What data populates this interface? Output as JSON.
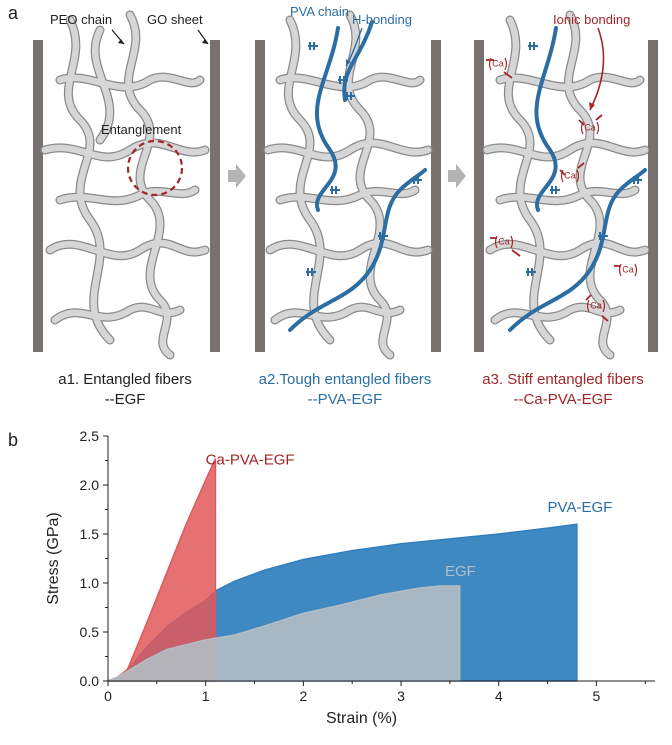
{
  "panel_a": {
    "letter": "a",
    "labels": {
      "peo_chain": "PEO chain",
      "go_sheet": "GO sheet",
      "entanglement": "Entanglement",
      "pva_chain": "PVA chain",
      "h_bonding": "H-bonding",
      "ionic_bonding": "Ionic bonding",
      "ca_ion": "Ca"
    },
    "captions": [
      {
        "line1": "a1. Entangled fibers",
        "line2": "--EGF",
        "color": "#1f1f1f"
      },
      {
        "line1": "a2.Tough entangled fibers",
        "line2": "--PVA-EGF",
        "color": "#2c6ea3"
      },
      {
        "line1": "a3. Stiff entangled fibers",
        "line2": "--Ca-PVA-EGF",
        "color": "#a3262a"
      }
    ],
    "colors": {
      "sheet": "#77716f",
      "peo": "#c9c9c9",
      "pva": "#2c6ea3",
      "ca": "#a3262a"
    }
  },
  "panel_b": {
    "letter": "b",
    "chart_data": {
      "type": "area",
      "xlabel": "Strain (%)",
      "ylabel": "Stress (GPa)",
      "xlim": [
        0,
        5.6
      ],
      "ylim": [
        0,
        2.5
      ],
      "x_ticks": [
        "0",
        "1",
        "2",
        "3",
        "4",
        "5"
      ],
      "y_ticks": [
        "0.0",
        "0.5",
        "1.0",
        "1.5",
        "2.0",
        "2.5"
      ],
      "grid": false,
      "series": [
        {
          "name": "PVA-EGF",
          "color": "#2f7fbe",
          "x": [
            0,
            0.1,
            0.2,
            0.4,
            0.6,
            0.8,
            1.0,
            1.1,
            1.3,
            1.6,
            2.0,
            2.5,
            3.0,
            3.5,
            4.0,
            4.5,
            4.8
          ],
          "y": [
            0,
            0.04,
            0.11,
            0.35,
            0.55,
            0.7,
            0.82,
            0.92,
            1.02,
            1.13,
            1.24,
            1.33,
            1.4,
            1.45,
            1.5,
            1.56,
            1.6
          ]
        },
        {
          "name": "Ca-PVA-EGF",
          "color": "#e0585a",
          "x": [
            0,
            0.1,
            0.2,
            0.4,
            0.6,
            0.8,
            1.0,
            1.1
          ],
          "y": [
            0,
            0.04,
            0.12,
            0.6,
            1.1,
            1.6,
            2.05,
            2.27
          ]
        },
        {
          "name": "EGF",
          "color": "#b3bdc3",
          "x": [
            0,
            0.1,
            0.2,
            0.4,
            0.6,
            0.8,
            1.0,
            1.3,
            1.6,
            2.0,
            2.4,
            2.8,
            3.2,
            3.4,
            3.6
          ],
          "y": [
            0,
            0.04,
            0.1,
            0.22,
            0.32,
            0.37,
            0.42,
            0.47,
            0.56,
            0.69,
            0.78,
            0.88,
            0.95,
            0.97,
            0.97
          ]
        }
      ]
    }
  }
}
